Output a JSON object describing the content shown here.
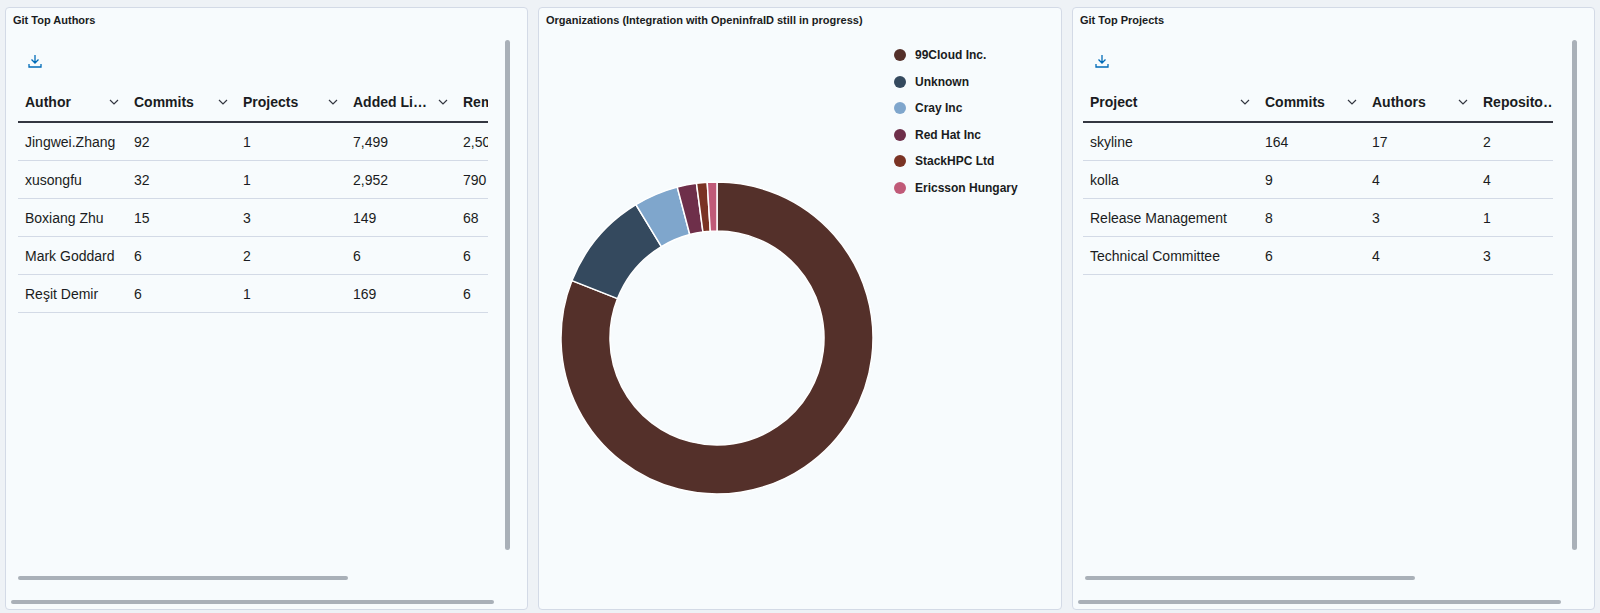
{
  "authors_panel": {
    "title": "Git Top Authors",
    "table": {
      "columns": [
        "Author",
        "Commits",
        "Projects",
        "Added Li…",
        "Rem"
      ],
      "rows": [
        [
          "Jingwei.Zhang",
          "92",
          "1",
          "7,499",
          "2,50"
        ],
        [
          "xusongfu",
          "32",
          "1",
          "2,952",
          "790"
        ],
        [
          "Boxiang Zhu",
          "15",
          "3",
          "149",
          "68"
        ],
        [
          "Mark Goddard",
          "6",
          "2",
          "6",
          "6"
        ],
        [
          "Reşit Demir",
          "6",
          "1",
          "169",
          "6"
        ]
      ]
    }
  },
  "chart_data": {
    "type": "donut",
    "title": "Organizations (Integration with OpeninfraID still in progress)",
    "categories": [
      "99Cloud Inc.",
      "Unknown",
      "Cray Inc",
      "Red Hat Inc",
      "StackHPC Ltd",
      "Ericsson Hungary"
    ],
    "values": [
      81,
      10.3,
      4.6,
      2,
      1.1,
      1
    ],
    "colors": [
      "#54302a",
      "#34495e",
      "#7fa6cc",
      "#6e2f4a",
      "#7a3324",
      "#c05a78"
    ],
    "legend": "top-right"
  },
  "projects_panel": {
    "title": "Git Top Projects",
    "table": {
      "columns": [
        "Project",
        "Commits",
        "Authors",
        "Reposito…"
      ],
      "rows": [
        [
          "skyline",
          "164",
          "17",
          "2"
        ],
        [
          "kolla",
          "9",
          "4",
          "4"
        ],
        [
          "Release Management",
          "8",
          "3",
          "1"
        ],
        [
          "Technical Committee",
          "6",
          "4",
          "3"
        ]
      ]
    }
  }
}
